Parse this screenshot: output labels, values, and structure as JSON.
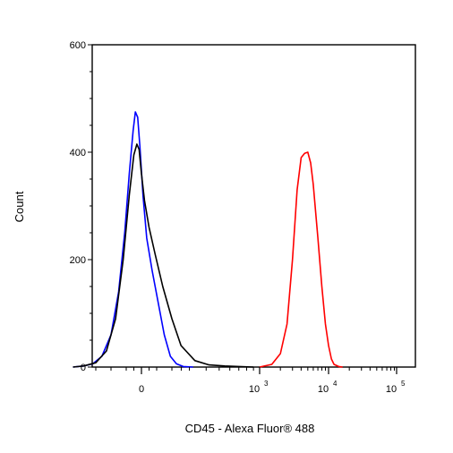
{
  "chart_data": {
    "type": "line",
    "title": "",
    "xlabel": "CD45 - Alexa Fluor® 488",
    "ylabel": "Count",
    "ylim": [
      0,
      600
    ],
    "x_scale": "biexponential",
    "y_ticks": [
      "0",
      "200",
      "400",
      "600"
    ],
    "x_ticks": [
      {
        "base": "0",
        "exp": ""
      },
      {
        "base": "10",
        "exp": "3"
      },
      {
        "base": "10",
        "exp": "4"
      },
      {
        "base": "10",
        "exp": "5"
      }
    ],
    "legend": "none",
    "grid": false,
    "series": [
      {
        "color": "#0000ff",
        "points": [
          [
            -450,
            0
          ],
          [
            -380,
            2
          ],
          [
            -320,
            6
          ],
          [
            -260,
            20
          ],
          [
            -200,
            60
          ],
          [
            -150,
            140
          ],
          [
            -110,
            250
          ],
          [
            -80,
            360
          ],
          [
            -55,
            440
          ],
          [
            -40,
            475
          ],
          [
            -25,
            465
          ],
          [
            -10,
            410
          ],
          [
            10,
            320
          ],
          [
            35,
            240
          ],
          [
            70,
            180
          ],
          [
            110,
            120
          ],
          [
            150,
            60
          ],
          [
            190,
            20
          ],
          [
            230,
            6
          ],
          [
            270,
            1
          ],
          [
            320,
            0
          ]
        ]
      },
      {
        "color": "#000000",
        "points": [
          [
            -450,
            0
          ],
          [
            -380,
            2
          ],
          [
            -300,
            8
          ],
          [
            -230,
            30
          ],
          [
            -170,
            90
          ],
          [
            -120,
            200
          ],
          [
            -80,
            320
          ],
          [
            -50,
            395
          ],
          [
            -30,
            415
          ],
          [
            -15,
            405
          ],
          [
            0,
            360
          ],
          [
            20,
            310
          ],
          [
            50,
            260
          ],
          [
            90,
            210
          ],
          [
            140,
            150
          ],
          [
            200,
            90
          ],
          [
            260,
            40
          ],
          [
            330,
            12
          ],
          [
            420,
            4
          ],
          [
            550,
            2
          ],
          [
            700,
            1
          ],
          [
            900,
            0
          ]
        ]
      },
      {
        "color": "#ff0000",
        "points": [
          [
            1000,
            0
          ],
          [
            1500,
            5
          ],
          [
            2000,
            25
          ],
          [
            2500,
            80
          ],
          [
            3000,
            200
          ],
          [
            3500,
            330
          ],
          [
            4000,
            390
          ],
          [
            4500,
            398
          ],
          [
            5000,
            400
          ],
          [
            5500,
            380
          ],
          [
            6000,
            340
          ],
          [
            7000,
            240
          ],
          [
            8000,
            150
          ],
          [
            9000,
            80
          ],
          [
            10000,
            40
          ],
          [
            11000,
            15
          ],
          [
            12000,
            5
          ],
          [
            14000,
            1
          ],
          [
            16000,
            0
          ]
        ]
      }
    ]
  }
}
